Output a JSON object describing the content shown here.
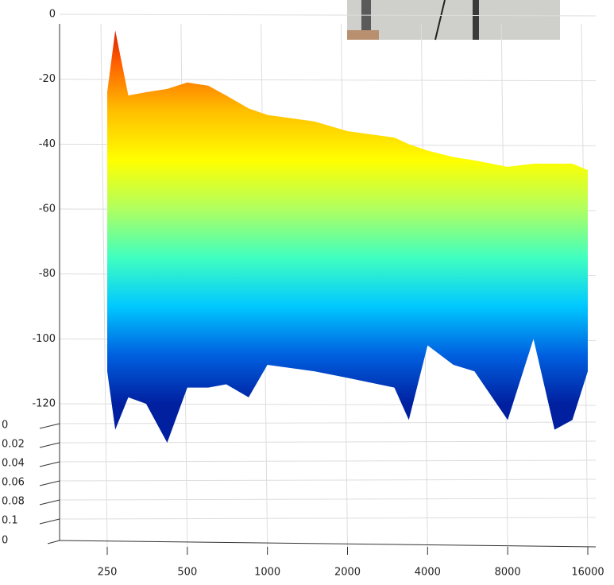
{
  "chart_data": {
    "type": "surface3d",
    "x": [
      250,
      268,
      300,
      350,
      420,
      500,
      600,
      700,
      850,
      1000,
      1500,
      2000,
      3000,
      3400,
      4000,
      5000,
      6000,
      8000,
      10000,
      12000,
      14000,
      16000
    ],
    "series": [
      {
        "values": [
          -24,
          -5,
          -25,
          -24,
          -23,
          -21,
          -22,
          -25,
          -29,
          -31,
          -33,
          -36,
          -38,
          -40,
          -42,
          -44,
          -45,
          -47,
          -46,
          -46,
          -46,
          -48
        ]
      },
      {
        "values": [
          -110,
          -128,
          -118,
          -120,
          -132,
          -115,
          -115,
          -114,
          -118,
          -108,
          -110,
          -112,
          -115,
          -125,
          -102,
          -108,
          -110,
          -125,
          -100,
          -128,
          -125,
          -110
        ]
      }
    ],
    "xlim": [
      250,
      16000
    ],
    "xticks": [
      250,
      500,
      1000,
      2000,
      4000,
      8000,
      16000
    ],
    "log_x": true,
    "zlim": [
      -120,
      0
    ],
    "zticks": [
      0,
      -20,
      -40,
      -60,
      -80,
      -100,
      -120
    ],
    "ylim": [
      0,
      0.1
    ],
    "yticks": [
      0,
      0.02,
      0.04,
      0.06,
      0.08,
      0.1
    ],
    "corner_label": 0,
    "colormap": [
      "#c80000",
      "#ff6000",
      "#ffc000",
      "#ffff00",
      "#b0ff60",
      "#40ffc0",
      "#00c8ff",
      "#0060e0",
      "#0020a0"
    ],
    "grid": true
  }
}
